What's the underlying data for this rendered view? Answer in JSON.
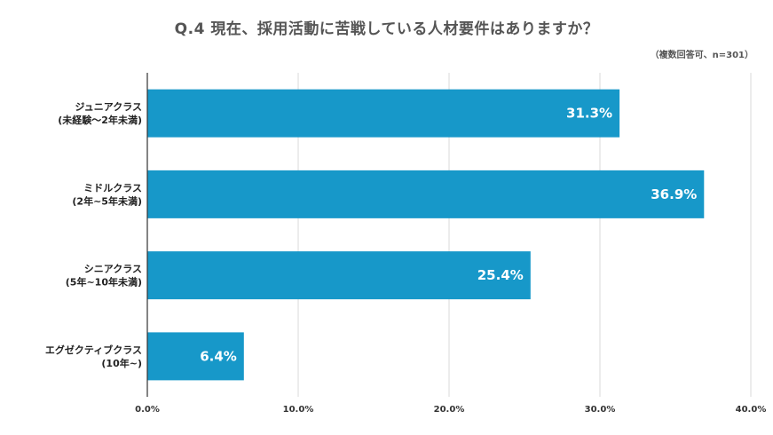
{
  "chart_data": {
    "type": "bar",
    "orientation": "horizontal",
    "title": "Q.4 現在、採用活動に苦戦している人材要件はありますか？",
    "subtitle": "（複数回答可、n=301）",
    "categories": [
      [
        "ジュニアクラス",
        "(未経験～2年未満)"
      ],
      [
        "ミドルクラス",
        "(2年~5年未満)"
      ],
      [
        "シニアクラス",
        "(5年~10年未満)"
      ],
      [
        "エグゼクティブクラス",
        "(10年~)"
      ]
    ],
    "values": [
      31.3,
      36.9,
      25.4,
      6.4
    ],
    "value_labels": [
      "31.3%",
      "36.9%",
      "25.4%",
      "6.4%"
    ],
    "xlim": [
      0,
      40
    ],
    "ticks": [
      0,
      10,
      20,
      30,
      40
    ],
    "tick_labels": [
      "0.0%",
      "10.0%",
      "20.0%",
      "30.0%",
      "40.0%"
    ],
    "grid": true,
    "legend": "none",
    "colors": {
      "bar": "#1798c9",
      "title": "#555555",
      "grid": "#d9d9d9"
    }
  }
}
